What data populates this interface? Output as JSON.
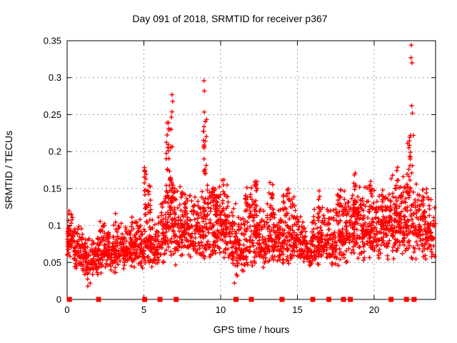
{
  "page": {
    "background": "#ffffff"
  },
  "chart_data": {
    "type": "scatter",
    "title": "Day 091 of 2018, SRMTID for receiver p367",
    "xlabel": "GPS time / hours",
    "ylabel": "SRMTID / TECUs",
    "xlim": [
      0,
      24
    ],
    "ylim": [
      0,
      0.35
    ],
    "xticks": {
      "values": [
        0,
        5,
        10,
        15,
        20
      ],
      "labels": [
        "0",
        "5",
        "10",
        "15",
        "20"
      ]
    },
    "yticks": {
      "values": [
        0,
        0.05,
        0.1,
        0.15,
        0.2,
        0.25,
        0.3,
        0.35
      ],
      "labels": [
        "0",
        "0.05",
        "0.1",
        "0.15",
        "0.2",
        "0.25",
        "0.3",
        "0.35"
      ]
    },
    "grid": {
      "show": true,
      "color": "#9c9c9c",
      "dash": "2,4"
    },
    "frame_color": "#000000",
    "marker": {
      "shape": "plus",
      "color": "#ff0000",
      "half_size": 3.2,
      "stroke_width": 1.4
    },
    "baseline_marker": {
      "shape": "filled-square",
      "color": "#ff0000",
      "size": 7
    },
    "baseline_squares_hours": [
      0.15,
      2.05,
      5.05,
      6.05,
      7.1,
      11.0,
      12.0,
      14.0,
      16.0,
      17.05,
      18.0,
      18.45,
      21.1,
      22.1,
      22.6
    ],
    "scatter": {
      "seed": 1091,
      "bin_width": 0.5,
      "bins_format": [
        "hour_start",
        "count",
        "y_min",
        "y_mode",
        "y_max"
      ],
      "bins": [
        [
          0.0,
          55,
          0.045,
          0.07,
          0.125
        ],
        [
          0.5,
          55,
          0.04,
          0.065,
          0.105
        ],
        [
          1.0,
          50,
          0.025,
          0.055,
          0.09
        ],
        [
          1.5,
          50,
          0.02,
          0.05,
          0.09
        ],
        [
          2.0,
          50,
          0.03,
          0.055,
          0.115
        ],
        [
          2.5,
          50,
          0.035,
          0.06,
          0.1
        ],
        [
          3.0,
          50,
          0.035,
          0.06,
          0.12
        ],
        [
          3.5,
          55,
          0.04,
          0.065,
          0.11
        ],
        [
          4.0,
          55,
          0.04,
          0.065,
          0.12
        ],
        [
          4.5,
          50,
          0.04,
          0.06,
          0.115
        ],
        [
          5.0,
          55,
          0.04,
          0.07,
          0.135
        ],
        [
          5.5,
          50,
          0.04,
          0.065,
          0.12
        ],
        [
          6.0,
          50,
          0.045,
          0.075,
          0.15
        ],
        [
          6.5,
          55,
          0.05,
          0.09,
          0.185
        ],
        [
          7.0,
          55,
          0.045,
          0.08,
          0.16
        ],
        [
          7.5,
          55,
          0.05,
          0.09,
          0.15
        ],
        [
          8.0,
          50,
          0.05,
          0.08,
          0.145
        ],
        [
          8.5,
          50,
          0.05,
          0.085,
          0.16
        ],
        [
          9.0,
          55,
          0.05,
          0.09,
          0.175
        ],
        [
          9.5,
          60,
          0.055,
          0.095,
          0.16
        ],
        [
          10.0,
          55,
          0.045,
          0.08,
          0.16
        ],
        [
          10.5,
          50,
          0.035,
          0.07,
          0.13
        ],
        [
          11.0,
          50,
          0.03,
          0.065,
          0.12
        ],
        [
          11.5,
          55,
          0.04,
          0.075,
          0.155
        ],
        [
          12.0,
          55,
          0.04,
          0.07,
          0.16
        ],
        [
          12.5,
          50,
          0.04,
          0.065,
          0.125
        ],
        [
          13.0,
          55,
          0.04,
          0.07,
          0.16
        ],
        [
          13.5,
          50,
          0.045,
          0.07,
          0.135
        ],
        [
          14.0,
          55,
          0.04,
          0.07,
          0.15
        ],
        [
          14.5,
          55,
          0.045,
          0.075,
          0.145
        ],
        [
          15.0,
          50,
          0.04,
          0.065,
          0.115
        ],
        [
          15.5,
          50,
          0.04,
          0.06,
          0.105
        ],
        [
          16.0,
          55,
          0.04,
          0.07,
          0.125
        ],
        [
          16.5,
          50,
          0.04,
          0.07,
          0.14
        ],
        [
          17.0,
          50,
          0.04,
          0.07,
          0.13
        ],
        [
          17.5,
          55,
          0.045,
          0.08,
          0.155
        ],
        [
          18.0,
          55,
          0.045,
          0.08,
          0.155
        ],
        [
          18.5,
          60,
          0.05,
          0.09,
          0.175
        ],
        [
          19.0,
          55,
          0.05,
          0.085,
          0.16
        ],
        [
          19.5,
          55,
          0.05,
          0.09,
          0.165
        ],
        [
          20.0,
          50,
          0.045,
          0.08,
          0.15
        ],
        [
          20.5,
          55,
          0.05,
          0.09,
          0.155
        ],
        [
          21.0,
          55,
          0.05,
          0.095,
          0.175
        ],
        [
          21.5,
          60,
          0.055,
          0.1,
          0.185
        ],
        [
          22.0,
          55,
          0.05,
          0.095,
          0.19
        ],
        [
          22.5,
          50,
          0.05,
          0.09,
          0.165
        ],
        [
          23.0,
          50,
          0.05,
          0.085,
          0.155
        ],
        [
          23.5,
          45,
          0.045,
          0.08,
          0.15
        ]
      ],
      "spikes_format": [
        "hour_center",
        "hour_width",
        "y_min",
        "y_max",
        "count"
      ],
      "spikes": [
        [
          5.1,
          0.15,
          0.12,
          0.185,
          14
        ],
        [
          5.35,
          0.2,
          0.11,
          0.16,
          10
        ],
        [
          6.6,
          0.3,
          0.13,
          0.24,
          26
        ],
        [
          6.8,
          0.12,
          0.1,
          0.277,
          14
        ],
        [
          7.6,
          0.4,
          0.1,
          0.15,
          12
        ],
        [
          8.9,
          0.12,
          0.1,
          0.285,
          14
        ],
        [
          9.0,
          0.2,
          0.17,
          0.245,
          12
        ],
        [
          9.7,
          0.3,
          0.11,
          0.158,
          10
        ],
        [
          10.2,
          0.2,
          0.115,
          0.165,
          9
        ],
        [
          11.65,
          0.2,
          0.115,
          0.158,
          8
        ],
        [
          12.3,
          0.2,
          0.115,
          0.165,
          9
        ],
        [
          13.35,
          0.25,
          0.115,
          0.165,
          10
        ],
        [
          14.35,
          0.2,
          0.11,
          0.15,
          7
        ],
        [
          16.35,
          0.2,
          0.11,
          0.155,
          7
        ],
        [
          17.7,
          0.25,
          0.11,
          0.158,
          8
        ],
        [
          18.7,
          0.3,
          0.115,
          0.175,
          10
        ],
        [
          19.8,
          0.25,
          0.115,
          0.162,
          8
        ],
        [
          21.3,
          0.35,
          0.115,
          0.175,
          10
        ],
        [
          22.25,
          0.25,
          0.14,
          0.23,
          16
        ],
        [
          23.3,
          0.3,
          0.11,
          0.155,
          6
        ]
      ],
      "outliers_format": [
        "hour",
        "value"
      ],
      "outliers": [
        [
          6.83,
          0.277
        ],
        [
          6.88,
          0.268
        ],
        [
          8.91,
          0.296
        ],
        [
          8.94,
          0.282
        ],
        [
          22.42,
          0.344
        ],
        [
          22.4,
          0.327
        ],
        [
          22.46,
          0.32
        ],
        [
          22.44,
          0.262
        ],
        [
          22.49,
          0.252
        ],
        [
          22.55,
          0.222
        ],
        [
          1.35,
          0.018
        ],
        [
          1.5,
          0.022
        ],
        [
          10.9,
          0.022
        ]
      ]
    }
  }
}
